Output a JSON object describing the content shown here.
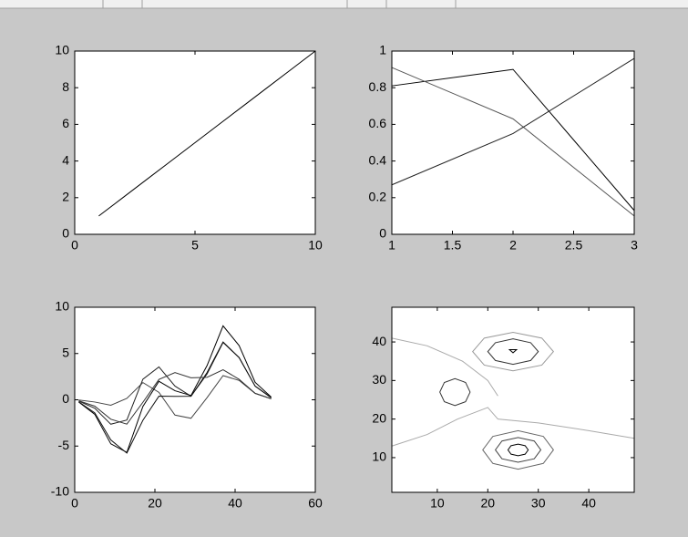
{
  "chart_data": [
    {
      "type": "line",
      "x": [
        1,
        2,
        3,
        4,
        5,
        6,
        7,
        8,
        9,
        10
      ],
      "series": [
        {
          "color": "#000000",
          "values": [
            1,
            2,
            3,
            4,
            5,
            6,
            7,
            8,
            9,
            10
          ]
        }
      ],
      "xlim": [
        0,
        10
      ],
      "xticks": [
        0,
        5,
        10
      ],
      "ylim": [
        0,
        10
      ],
      "yticks": [
        0,
        2,
        4,
        6,
        8,
        10
      ]
    },
    {
      "type": "line",
      "x": [
        1,
        2,
        3
      ],
      "series": [
        {
          "color": "#000000",
          "values": [
            0.81,
            0.9,
            0.13
          ]
        },
        {
          "color": "#555555",
          "values": [
            0.91,
            0.63,
            0.1
          ]
        },
        {
          "color": "#222222",
          "values": [
            0.27,
            0.55,
            0.96
          ]
        }
      ],
      "xlim": [
        1,
        3
      ],
      "xticks": [
        1,
        1.5,
        2,
        2.5,
        3
      ],
      "ylim": [
        0,
        1
      ],
      "yticks": [
        0,
        0.2,
        0.4,
        0.6,
        0.8,
        1
      ]
    },
    {
      "type": "line",
      "x": [
        1,
        5,
        9,
        13,
        17,
        21,
        25,
        29,
        33,
        37,
        41,
        45,
        49
      ],
      "series": [
        {
          "color": "#444444",
          "values": [
            -0.03,
            -0.24,
            -0.59,
            0.15,
            1.86,
            0.8,
            -1.65,
            -2.0,
            0.23,
            2.61,
            2.09,
            0.69,
            0.11
          ]
        },
        {
          "color": "#222222",
          "values": [
            -0.14,
            -0.91,
            -2.64,
            -2.19,
            2.22,
            3.55,
            1.48,
            0.39,
            2.79,
            6.19,
            4.56,
            1.47,
            0.23
          ]
        },
        {
          "color": "#000000",
          "values": [
            -0.25,
            -1.57,
            -4.76,
            -5.68,
            -0.72,
            2.0,
            0.98,
            0.46,
            3.69,
            7.99,
            5.86,
            1.89,
            0.3
          ]
        },
        {
          "color": "#111111",
          "values": [
            -0.22,
            -1.41,
            -4.34,
            -5.76,
            -2.22,
            0.39,
            0.37,
            0.38,
            2.94,
            6.25,
            4.56,
            1.47,
            0.23
          ]
        },
        {
          "color": "#333333",
          "values": [
            -0.11,
            -0.69,
            -2.1,
            -2.63,
            -0.27,
            2.2,
            2.94,
            2.38,
            2.43,
            3.25,
            2.21,
            0.7,
            0.11
          ]
        }
      ],
      "xlim": [
        0,
        60
      ],
      "xticks": [
        0,
        20,
        40,
        60
      ],
      "ylim": [
        -10,
        10
      ],
      "yticks": [
        -10,
        -5,
        0,
        5,
        10
      ]
    },
    {
      "type": "contour",
      "contours": [
        {
          "color": "#aaaaaa",
          "closed": false,
          "x": [
            1,
            8,
            15,
            20,
            22
          ],
          "y": [
            41,
            39,
            35,
            30,
            26
          ]
        },
        {
          "color": "#aaaaaa",
          "closed": false,
          "x": [
            1,
            8,
            14,
            18,
            20,
            22,
            30,
            40,
            49
          ],
          "y": [
            13,
            16,
            20,
            22,
            23,
            20,
            19,
            17,
            15
          ]
        },
        {
          "color": "#999999",
          "closed": true,
          "x": [
            33,
            30.7,
            25,
            19.3,
            17,
            19.3,
            25,
            30.7
          ],
          "y": [
            37.5,
            41,
            42.5,
            41,
            37.5,
            34,
            32.5,
            34
          ]
        },
        {
          "color": "#333333",
          "closed": true,
          "x": [
            30,
            28.5,
            25,
            21.5,
            20,
            21.5,
            25,
            28.5
          ],
          "y": [
            37.5,
            39.8,
            40.8,
            39.8,
            37.5,
            35.2,
            34.2,
            35.2
          ]
        },
        {
          "color": "#000000",
          "closed": true,
          "x": [
            24.3,
            25.7,
            25
          ],
          "y": [
            38,
            38,
            37.2
          ]
        },
        {
          "color": "#666666",
          "closed": true,
          "x": [
            33,
            31,
            26,
            21,
            19,
            21,
            26,
            31
          ],
          "y": [
            12,
            15.5,
            17,
            15.5,
            12,
            8.5,
            7,
            8.5
          ]
        },
        {
          "color": "#444444",
          "closed": true,
          "x": [
            30.5,
            29.2,
            26,
            22.8,
            21.5,
            22.8,
            26,
            29.2
          ],
          "y": [
            12,
            14.3,
            15.2,
            14.3,
            12,
            9.7,
            8.8,
            9.7
          ]
        },
        {
          "color": "#000000",
          "closed": true,
          "x": [
            28,
            27.4,
            26,
            24.6,
            24,
            24.6,
            26,
            27.4
          ],
          "y": [
            12,
            13.1,
            13.5,
            13.1,
            12,
            10.9,
            10.5,
            10.9
          ]
        },
        {
          "color": "#333333",
          "closed": true,
          "x": [
            16.5,
            15.6,
            13.5,
            11.4,
            10.5,
            11.4,
            13.5,
            15.6
          ],
          "y": [
            27,
            29.5,
            30.5,
            29.5,
            27,
            24.5,
            23.5,
            24.5
          ]
        }
      ],
      "xlim": [
        1,
        49
      ],
      "xticks": [
        10,
        20,
        30,
        40
      ],
      "ylim": [
        1,
        49
      ],
      "yticks": [
        10,
        20,
        30,
        40
      ]
    }
  ]
}
